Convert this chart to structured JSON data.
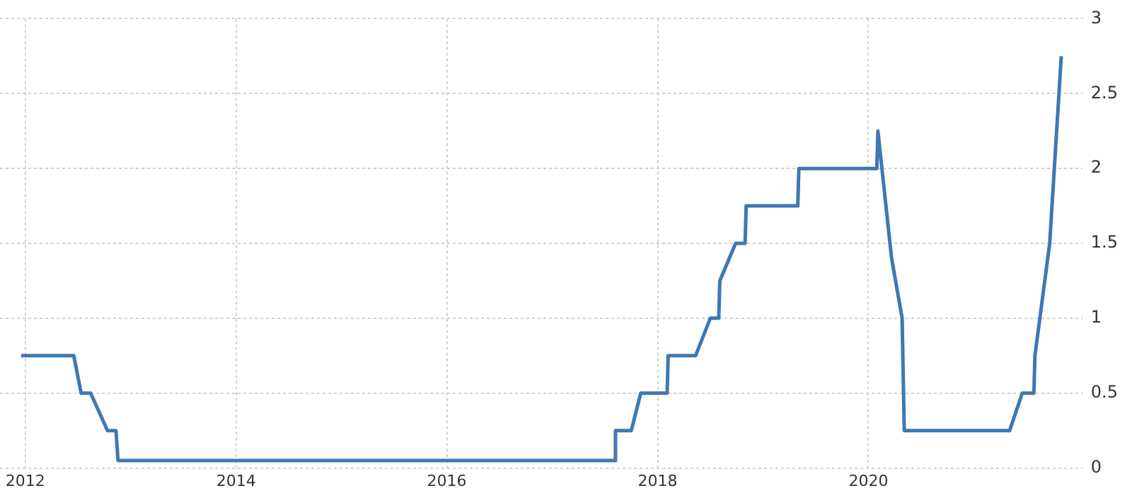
{
  "chart_data": {
    "type": "line",
    "xlim": [
      2011.76,
      2022.03
    ],
    "xticks": [
      2012,
      2014,
      2016,
      2018,
      2020
    ],
    "ylim": [
      0,
      3
    ],
    "yticks": [
      0,
      0.5,
      1,
      1.5,
      2,
      2.5,
      3
    ],
    "grid": true,
    "legend": false,
    "marker": "none",
    "line_style": "solid",
    "series": [
      {
        "color": "#3e78b2",
        "x": [
          2011.96,
          2012.46,
          2012.53,
          2012.62,
          2012.78,
          2012.86,
          2012.88,
          2017.59,
          2017.6,
          2017.75,
          2017.84,
          2018.09,
          2018.1,
          2018.36,
          2018.5,
          2018.58,
          2018.59,
          2018.74,
          2018.83,
          2018.84,
          2019.33,
          2019.34,
          2020.08,
          2020.09,
          2020.22,
          2020.32,
          2020.34,
          2021.34,
          2021.46,
          2021.57,
          2021.58,
          2021.72,
          2021.83
        ],
        "values": [
          0.75,
          0.75,
          0.5,
          0.5,
          0.25,
          0.25,
          0.05,
          0.05,
          0.25,
          0.25,
          0.5,
          0.5,
          0.75,
          0.75,
          1,
          1,
          1.25,
          1.5,
          1.5,
          1.75,
          1.75,
          2,
          2,
          2.25,
          1.4,
          1,
          0.25,
          0.25,
          0.5,
          0.5,
          0.75,
          1.5,
          2.75
        ]
      }
    ]
  }
}
